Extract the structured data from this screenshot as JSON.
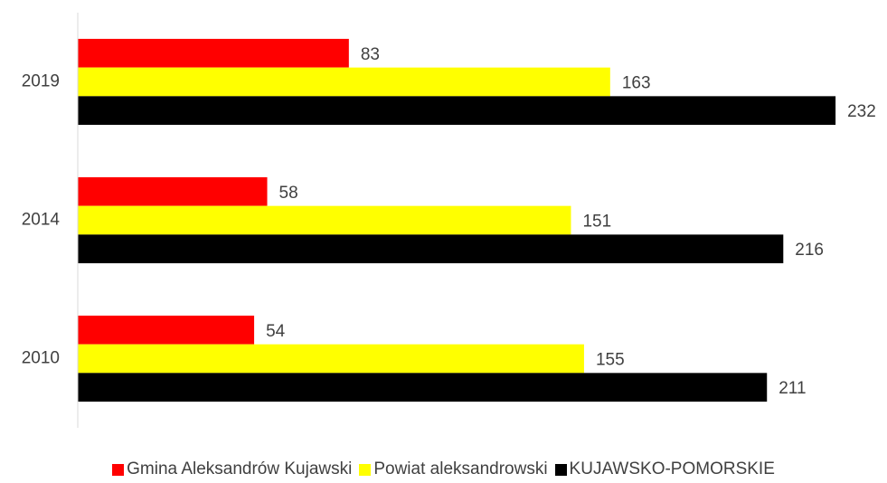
{
  "chart_data": {
    "type": "hbar",
    "categories": [
      "2019",
      "2014",
      "2010"
    ],
    "series": [
      {
        "name": "Gmina Aleksandrów Kujawski",
        "color": "#ff0000",
        "values": [
          83,
          58,
          54
        ]
      },
      {
        "name": "Powiat aleksandrowski",
        "color": "#ffff00",
        "values": [
          163,
          151,
          155
        ]
      },
      {
        "name": "KUJAWSKO-POMORSKIE",
        "color": "#000000",
        "values": [
          232,
          216,
          211
        ]
      }
    ],
    "xlim": [
      0,
      240
    ],
    "legend": "bottom"
  }
}
